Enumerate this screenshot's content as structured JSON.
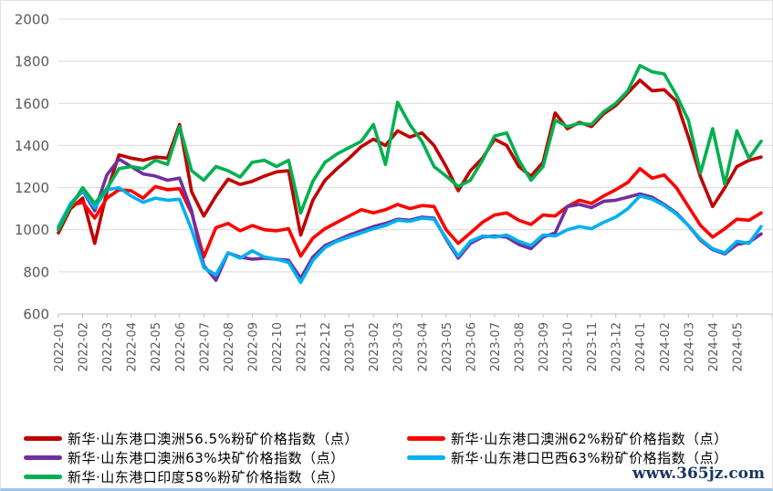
{
  "watermark": "www.365jz.com",
  "chart_data": {
    "type": "line",
    "title": "",
    "xlabel": "",
    "ylabel": "",
    "ylim": [
      600,
      2000
    ],
    "y_ticks": [
      600,
      800,
      1000,
      1200,
      1400,
      1600,
      1800,
      2000
    ],
    "grid": "horizontal",
    "legend_position": "bottom",
    "x_unit": "month, data sampled twice per month (semi-monthly index readings)",
    "points_per_month": 2,
    "x_tick_labels": [
      "2022-01",
      "2022-02",
      "2022-03",
      "2022-04",
      "2022-05",
      "2022-06",
      "2022-07",
      "2022-08",
      "2022-09",
      "2022-10",
      "2022-11",
      "2022-12",
      "2023-01",
      "2023-02",
      "2023-03",
      "2023-04",
      "2023-05",
      "2023-06",
      "2023-07",
      "2023-08",
      "2023-09",
      "2023-10",
      "2023-11",
      "2023-12",
      "2024-01",
      "2024-02",
      "2024-03",
      "2024-04",
      "2024-05"
    ],
    "series": [
      {
        "name": "新华·山东港口澳洲56.5%粉矿价格指数（点）",
        "color": "#C00000",
        "values": [
          985,
          1100,
          1150,
          935,
          1180,
          1355,
          1340,
          1330,
          1345,
          1340,
          1500,
          1180,
          1065,
          1160,
          1240,
          1215,
          1230,
          1255,
          1275,
          1280,
          975,
          1140,
          1235,
          1290,
          1340,
          1395,
          1430,
          1400,
          1470,
          1440,
          1460,
          1400,
          1300,
          1185,
          1280,
          1340,
          1430,
          1400,
          1300,
          1255,
          1320,
          1555,
          1480,
          1510,
          1490,
          1550,
          1590,
          1650,
          1710,
          1660,
          1665,
          1610,
          1440,
          1250,
          1110,
          1200,
          1300,
          1330,
          1345
        ]
      },
      {
        "name": "新华·山东港口澳洲62%粉矿价格指数（点）",
        "color": "#FF0000",
        "values": [
          1000,
          1115,
          1130,
          1055,
          1150,
          1190,
          1185,
          1150,
          1205,
          1190,
          1195,
          1080,
          870,
          1010,
          1030,
          995,
          1020,
          1000,
          995,
          1005,
          875,
          960,
          1005,
          1035,
          1065,
          1095,
          1080,
          1095,
          1120,
          1100,
          1115,
          1110,
          1000,
          935,
          985,
          1035,
          1070,
          1080,
          1045,
          1025,
          1070,
          1065,
          1110,
          1140,
          1125,
          1160,
          1190,
          1225,
          1290,
          1245,
          1260,
          1200,
          1110,
          1020,
          965,
          1005,
          1050,
          1045,
          1080
        ]
      },
      {
        "name": "新华·山东港口澳洲63%块矿价格指数（点）",
        "color": "#7030A0",
        "values": [
          1010,
          1120,
          1185,
          1090,
          1260,
          1335,
          1300,
          1265,
          1255,
          1235,
          1245,
          1090,
          830,
          760,
          890,
          870,
          860,
          865,
          860,
          855,
          770,
          870,
          925,
          950,
          975,
          995,
          1015,
          1030,
          1050,
          1045,
          1060,
          1055,
          955,
          865,
          935,
          965,
          970,
          965,
          930,
          910,
          965,
          985,
          1110,
          1120,
          1105,
          1135,
          1140,
          1155,
          1170,
          1155,
          1120,
          1080,
          1020,
          950,
          905,
          885,
          930,
          940,
          980
        ]
      },
      {
        "name": "新华·山东港口巴西63%粉矿价格指数（点）",
        "color": "#00B0F0",
        "values": [
          1015,
          1125,
          1185,
          1105,
          1190,
          1200,
          1160,
          1130,
          1150,
          1140,
          1145,
          1000,
          820,
          785,
          890,
          865,
          900,
          870,
          860,
          845,
          750,
          855,
          915,
          945,
          965,
          985,
          1005,
          1020,
          1045,
          1040,
          1055,
          1050,
          960,
          875,
          945,
          970,
          965,
          975,
          945,
          925,
          975,
          970,
          1000,
          1015,
          1005,
          1035,
          1060,
          1100,
          1160,
          1145,
          1115,
          1075,
          1020,
          955,
          910,
          890,
          945,
          935,
          1015
        ]
      },
      {
        "name": "新华·山东港口印度58%粉矿价格指数（点）",
        "color": "#00B050",
        "values": [
          1000,
          1110,
          1200,
          1125,
          1195,
          1290,
          1300,
          1290,
          1330,
          1310,
          1490,
          1280,
          1235,
          1300,
          1280,
          1250,
          1320,
          1330,
          1300,
          1330,
          1080,
          1230,
          1320,
          1360,
          1390,
          1420,
          1500,
          1310,
          1605,
          1500,
          1420,
          1300,
          1255,
          1205,
          1235,
          1330,
          1445,
          1460,
          1330,
          1235,
          1300,
          1520,
          1490,
          1505,
          1500,
          1560,
          1600,
          1660,
          1780,
          1750,
          1740,
          1640,
          1520,
          1270,
          1480,
          1215,
          1470,
          1340,
          1420
        ]
      }
    ],
    "legend_rows": [
      [
        0,
        1
      ],
      [
        2,
        3
      ],
      [
        4
      ]
    ]
  }
}
